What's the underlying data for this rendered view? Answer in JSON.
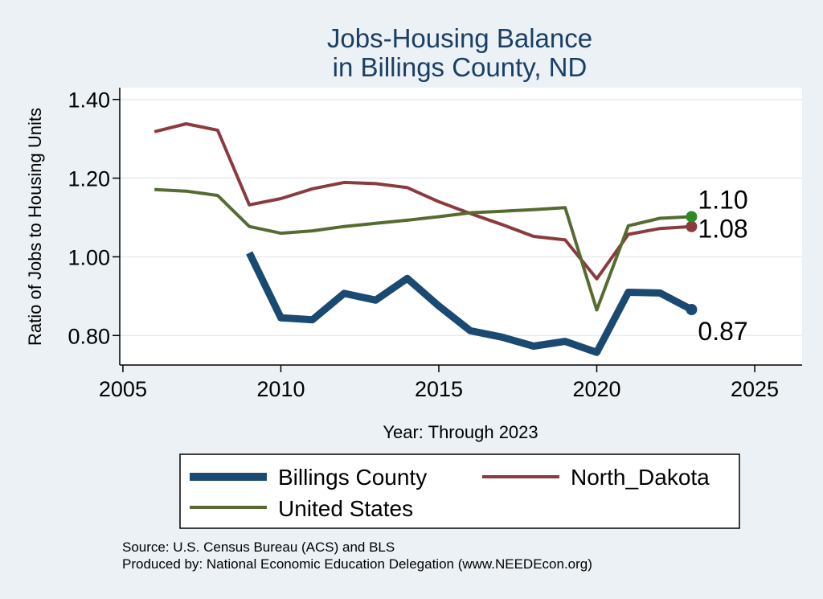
{
  "chart_data": {
    "type": "line",
    "title": [
      "Jobs-Housing Balance",
      "in Billings County, ND"
    ],
    "xlabel": "Year: Through 2023",
    "ylabel": "Ratio of Jobs to Housing Units",
    "xlim": [
      2004.9,
      2026.5
    ],
    "ylim": [
      0.725,
      1.43
    ],
    "x_ticks": [
      2005,
      2010,
      2015,
      2020,
      2025
    ],
    "y_ticks": [
      0.8,
      1.0,
      1.2,
      1.4
    ],
    "y_tick_labels": [
      "0.80",
      "1.00",
      "1.20",
      "1.40"
    ],
    "grid": true,
    "legend_position": "bottom",
    "series": [
      {
        "name": "Billings County",
        "color": "#1a4a72",
        "x": [
          2009,
          2010,
          2011,
          2012,
          2013,
          2014,
          2015,
          2016,
          2017,
          2018,
          2019,
          2020,
          2021,
          2022,
          2023
        ],
        "y": [
          1.01,
          0.845,
          0.84,
          0.907,
          0.89,
          0.945,
          0.875,
          0.812,
          0.796,
          0.773,
          0.785,
          0.757,
          0.91,
          0.908,
          0.866
        ],
        "end_label": "0.87"
      },
      {
        "name": "North_Dakota",
        "color": "#8b3a3e",
        "x": [
          2006,
          2007,
          2008,
          2009,
          2010,
          2011,
          2012,
          2013,
          2014,
          2015,
          2016,
          2017,
          2018,
          2019,
          2020,
          2021,
          2022,
          2023
        ],
        "y": [
          1.318,
          1.338,
          1.322,
          1.132,
          1.148,
          1.173,
          1.189,
          1.186,
          1.176,
          1.14,
          1.11,
          1.082,
          1.052,
          1.043,
          0.944,
          1.057,
          1.072,
          1.077
        ],
        "end_label": "1.08"
      },
      {
        "name": "United States",
        "color": "#556b2f",
        "x": [
          2006,
          2007,
          2008,
          2009,
          2010,
          2011,
          2012,
          2013,
          2014,
          2015,
          2016,
          2017,
          2018,
          2019,
          2020,
          2021,
          2022,
          2023
        ],
        "y": [
          1.171,
          1.167,
          1.156,
          1.077,
          1.06,
          1.066,
          1.077,
          1.085,
          1.093,
          1.102,
          1.112,
          1.116,
          1.12,
          1.125,
          0.865,
          1.079,
          1.098,
          1.102
        ],
        "end_label": "1.10"
      }
    ],
    "end_point_colors": {
      "Billings County": "#1a4a72",
      "North_Dakota": "#8b3a3e",
      "United States": "#2e8b22"
    }
  },
  "source": {
    "line1": "Source: U.S. Census Bureau (ACS) and BLS",
    "line2": "Produced by: National Economic Education Delegation (www.NEEDEcon.org)"
  }
}
